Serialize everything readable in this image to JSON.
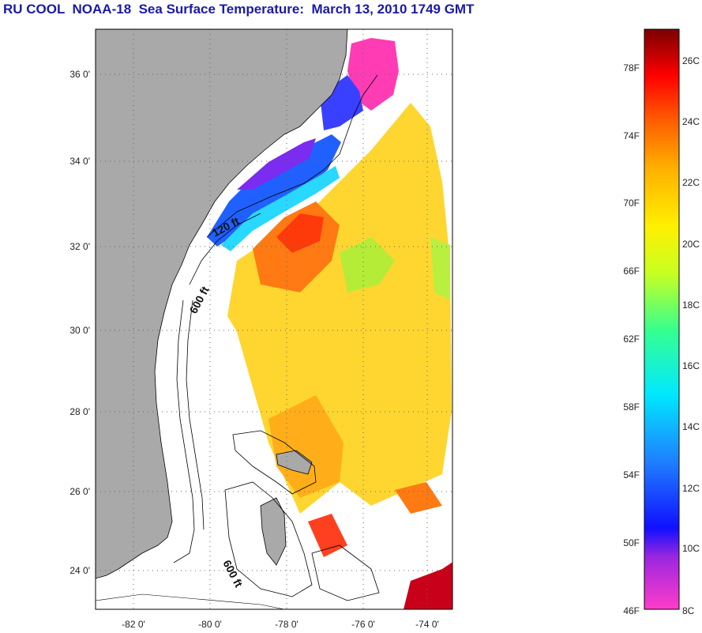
{
  "title": "RU COOL  NOAA-18  Sea Surface Temperature:  March 13, 2010 1749 GMT",
  "map": {
    "lat_labels": [
      "36 0'",
      "34 0'",
      "32 0'",
      "30 0'",
      "28 0'",
      "26 0'",
      "24 0'"
    ],
    "lon_labels": [
      "-82 0'",
      "-80 0'",
      "-78 0'",
      "-76 0'",
      "-74 0'"
    ],
    "contour_labels": [
      "120 ft",
      "600 ft",
      "600 ft"
    ],
    "land_color": "#a9a9a9",
    "grid": "dotted"
  },
  "colorbar": {
    "fahrenheit_labels": [
      "78F",
      "74F",
      "70F",
      "66F",
      "62F",
      "58F",
      "54F",
      "50F",
      "46F"
    ],
    "celsius_labels": [
      "26C",
      "24C",
      "22C",
      "20C",
      "18C",
      "16C",
      "14C",
      "12C",
      "10C",
      "8C"
    ],
    "range_c": [
      8,
      27
    ]
  }
}
